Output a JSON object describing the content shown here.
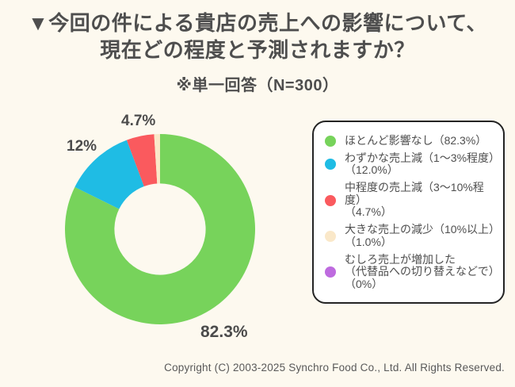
{
  "page": {
    "background_color": "#fdf9ef",
    "title_line1": "▼今回の件による貴店の売上への影響について、",
    "title_line2": "現在どの程度と予測されますか？",
    "subtitle": "※単一回答（N=300）",
    "copyright": "Copyright (C) 2003-2025  Synchro Food Co., Ltd. All Rights Reserved."
  },
  "chart_data": {
    "type": "pie",
    "subtype": "donut",
    "title": "今回の件による貴店の売上への影響について、現在どの程度と予測されますか？",
    "subtitle": "※単一回答（N=300）",
    "answer_type": "単一回答",
    "sample_size": 300,
    "start_angle_deg": 0,
    "direction": "clockwise",
    "inner_radius_ratio": 0.48,
    "legend_position": "right",
    "segments": [
      {
        "label": "ほとんど影響なし",
        "value": 82.3,
        "color": "#77d35b",
        "data_label": "82.3%"
      },
      {
        "label": "わずかな売上減（1〜3%程度）",
        "value": 12.0,
        "color": "#1fbce4",
        "data_label": "12%"
      },
      {
        "label": "中程度の売上減（3〜10%程度）",
        "value": 4.7,
        "color": "#fa5a5e",
        "data_label": "4.7%"
      },
      {
        "label": "大きな売上の減少（10%以上）",
        "value": 1.0,
        "color": "#fae8c9",
        "data_label": ""
      },
      {
        "label": "むしろ売上が増加した（代替品への切り替えなどで）",
        "value": 0.0,
        "color": "#be6bdf",
        "data_label": ""
      }
    ]
  },
  "legend": {
    "items": [
      {
        "color": "#77d35b",
        "lines": [
          "ほとんど影響なし（82.3%）"
        ]
      },
      {
        "color": "#1fbce4",
        "lines": [
          "わずかな売上減（1〜3%程度）",
          "（12.0%）"
        ]
      },
      {
        "color": "#fa5a5e",
        "lines": [
          "中程度の売上減（3〜10%程度）",
          "（4.7%）"
        ]
      },
      {
        "color": "#fae8c9",
        "lines": [
          "大きな売上の減少（10%以上）",
          "（1.0%）"
        ]
      },
      {
        "color": "#be6bdf",
        "lines": [
          "むしろ売上が増加した",
          "（代替品への切り替えなどで）",
          "（0%）"
        ]
      }
    ]
  }
}
